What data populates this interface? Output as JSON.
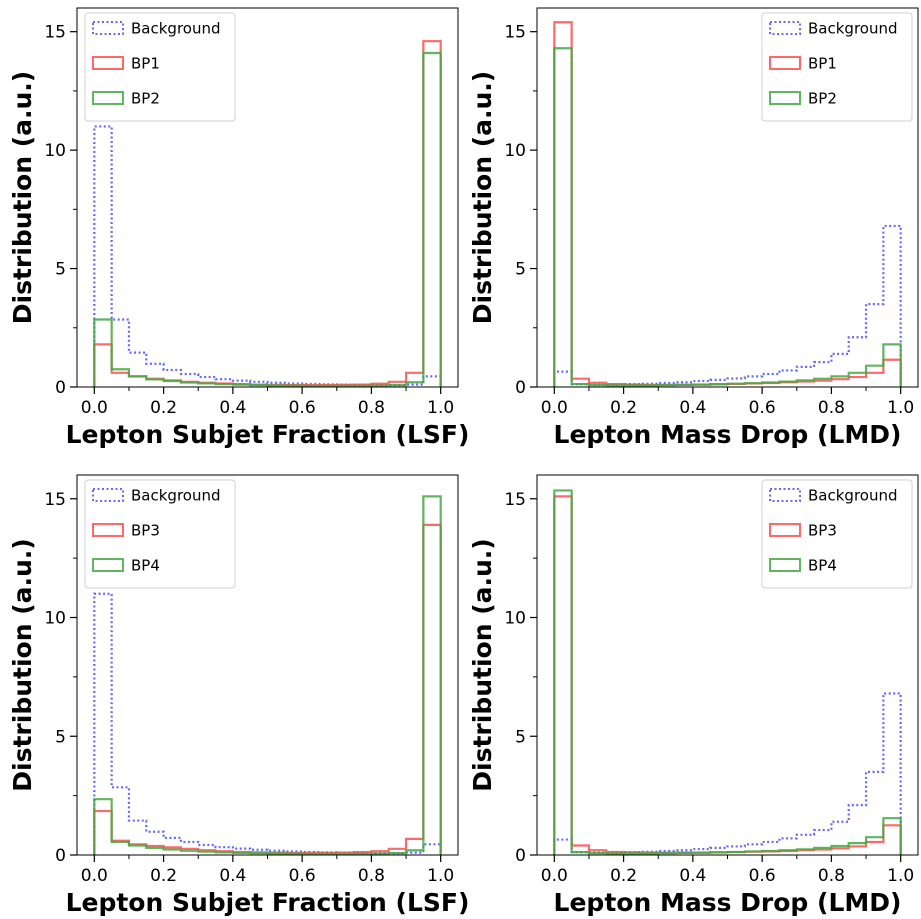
{
  "figure": {
    "colors": {
      "background": "#4c4cff",
      "bp_red": "#ff4d4d",
      "bp_green": "#44a844"
    }
  },
  "chart_data": [
    {
      "type": "step-histogram",
      "xlabel": "Lepton Subjet Fraction (LSF)",
      "ylabel": "Distribution (a.u.)",
      "xlim": [
        -0.05,
        1.05
      ],
      "ylim": [
        0,
        16
      ],
      "xticks": [
        "0.0",
        "0.2",
        "0.4",
        "0.6",
        "0.8",
        "1.0"
      ],
      "yticks": [
        "0",
        "5",
        "10",
        "15"
      ],
      "legend_position": "top-left",
      "bin_edges": [
        0,
        0.05,
        0.1,
        0.15,
        0.2,
        0.25,
        0.3,
        0.35,
        0.4,
        0.45,
        0.5,
        0.55,
        0.6,
        0.65,
        0.7,
        0.75,
        0.8,
        0.85,
        0.9,
        0.95,
        1.0
      ],
      "series": [
        {
          "name": "Background",
          "style": "dotted",
          "color": "#4c4cff",
          "values": [
            11.0,
            2.85,
            1.45,
            0.98,
            0.72,
            0.55,
            0.42,
            0.33,
            0.27,
            0.22,
            0.18,
            0.15,
            0.13,
            0.11,
            0.1,
            0.09,
            0.08,
            0.08,
            0.1,
            0.45
          ]
        },
        {
          "name": "BP1",
          "style": "solid",
          "color": "#ff4d4d",
          "values": [
            1.8,
            0.6,
            0.45,
            0.35,
            0.28,
            0.22,
            0.18,
            0.15,
            0.12,
            0.1,
            0.09,
            0.08,
            0.08,
            0.08,
            0.09,
            0.1,
            0.14,
            0.22,
            0.6,
            14.6
          ]
        },
        {
          "name": "BP2",
          "style": "solid",
          "color": "#44a844",
          "values": [
            2.85,
            0.75,
            0.45,
            0.32,
            0.25,
            0.19,
            0.15,
            0.12,
            0.1,
            0.08,
            0.07,
            0.06,
            0.05,
            0.05,
            0.05,
            0.05,
            0.06,
            0.08,
            0.2,
            14.1
          ]
        }
      ]
    },
    {
      "type": "step-histogram",
      "xlabel": "Lepton Mass Drop (LMD)",
      "ylabel": "Distribution (a.u.)",
      "xlim": [
        -0.05,
        1.05
      ],
      "ylim": [
        0,
        16
      ],
      "xticks": [
        "0.0",
        "0.2",
        "0.4",
        "0.6",
        "0.8",
        "1.0"
      ],
      "yticks": [
        "0",
        "5",
        "10",
        "15"
      ],
      "legend_position": "top-right",
      "bin_edges": [
        0,
        0.05,
        0.1,
        0.15,
        0.2,
        0.25,
        0.3,
        0.35,
        0.4,
        0.45,
        0.5,
        0.55,
        0.6,
        0.65,
        0.7,
        0.75,
        0.8,
        0.85,
        0.9,
        0.95,
        1.0
      ],
      "series": [
        {
          "name": "Background",
          "style": "dotted",
          "color": "#4c4cff",
          "values": [
            0.65,
            0.12,
            0.1,
            0.1,
            0.12,
            0.14,
            0.17,
            0.2,
            0.25,
            0.3,
            0.36,
            0.45,
            0.55,
            0.7,
            0.85,
            1.05,
            1.4,
            2.1,
            3.5,
            6.8
          ]
        },
        {
          "name": "BP1",
          "style": "solid",
          "color": "#ff4d4d",
          "values": [
            15.4,
            0.35,
            0.18,
            0.12,
            0.1,
            0.09,
            0.09,
            0.09,
            0.1,
            0.11,
            0.13,
            0.15,
            0.17,
            0.2,
            0.23,
            0.27,
            0.33,
            0.42,
            0.6,
            1.15
          ]
        },
        {
          "name": "BP2",
          "style": "solid",
          "color": "#44a844",
          "values": [
            14.3,
            0.12,
            0.08,
            0.07,
            0.07,
            0.07,
            0.08,
            0.09,
            0.1,
            0.12,
            0.14,
            0.16,
            0.19,
            0.23,
            0.28,
            0.35,
            0.45,
            0.6,
            0.9,
            1.8
          ]
        }
      ]
    },
    {
      "type": "step-histogram",
      "xlabel": "Lepton Subjet Fraction (LSF)",
      "ylabel": "Distribution (a.u.)",
      "xlim": [
        -0.05,
        1.05
      ],
      "ylim": [
        0,
        16
      ],
      "xticks": [
        "0.0",
        "0.2",
        "0.4",
        "0.6",
        "0.8",
        "1.0"
      ],
      "yticks": [
        "0",
        "5",
        "10",
        "15"
      ],
      "legend_position": "top-left",
      "bin_edges": [
        0,
        0.05,
        0.1,
        0.15,
        0.2,
        0.25,
        0.3,
        0.35,
        0.4,
        0.45,
        0.5,
        0.55,
        0.6,
        0.65,
        0.7,
        0.75,
        0.8,
        0.85,
        0.9,
        0.95,
        1.0
      ],
      "series": [
        {
          "name": "Background",
          "style": "dotted",
          "color": "#4c4cff",
          "values": [
            11.0,
            2.85,
            1.45,
            0.98,
            0.72,
            0.55,
            0.42,
            0.33,
            0.27,
            0.22,
            0.18,
            0.15,
            0.13,
            0.11,
            0.1,
            0.09,
            0.08,
            0.08,
            0.1,
            0.45
          ]
        },
        {
          "name": "BP3",
          "style": "solid",
          "color": "#ff4d4d",
          "values": [
            1.85,
            0.6,
            0.45,
            0.38,
            0.32,
            0.26,
            0.2,
            0.16,
            0.13,
            0.11,
            0.1,
            0.09,
            0.09,
            0.09,
            0.1,
            0.12,
            0.16,
            0.26,
            0.68,
            13.9
          ]
        },
        {
          "name": "BP4",
          "style": "solid",
          "color": "#44a844",
          "values": [
            2.35,
            0.55,
            0.4,
            0.3,
            0.23,
            0.18,
            0.14,
            0.11,
            0.09,
            0.08,
            0.07,
            0.06,
            0.05,
            0.05,
            0.05,
            0.05,
            0.06,
            0.08,
            0.2,
            15.1
          ]
        }
      ]
    },
    {
      "type": "step-histogram",
      "xlabel": "Lepton Mass Drop (LMD)",
      "ylabel": "Distribution (a.u.)",
      "xlim": [
        -0.05,
        1.05
      ],
      "ylim": [
        0,
        16
      ],
      "xticks": [
        "0.0",
        "0.2",
        "0.4",
        "0.6",
        "0.8",
        "1.0"
      ],
      "yticks": [
        "0",
        "5",
        "10",
        "15"
      ],
      "legend_position": "top-right",
      "bin_edges": [
        0,
        0.05,
        0.1,
        0.15,
        0.2,
        0.25,
        0.3,
        0.35,
        0.4,
        0.45,
        0.5,
        0.55,
        0.6,
        0.65,
        0.7,
        0.75,
        0.8,
        0.85,
        0.9,
        0.95,
        1.0
      ],
      "series": [
        {
          "name": "Background",
          "style": "dotted",
          "color": "#4c4cff",
          "values": [
            0.65,
            0.12,
            0.1,
            0.1,
            0.12,
            0.14,
            0.17,
            0.2,
            0.25,
            0.3,
            0.36,
            0.45,
            0.55,
            0.7,
            0.85,
            1.05,
            1.4,
            2.1,
            3.5,
            6.8
          ]
        },
        {
          "name": "BP3",
          "style": "solid",
          "color": "#ff4d4d",
          "values": [
            15.1,
            0.4,
            0.2,
            0.13,
            0.11,
            0.1,
            0.1,
            0.1,
            0.1,
            0.11,
            0.12,
            0.14,
            0.15,
            0.17,
            0.2,
            0.23,
            0.28,
            0.36,
            0.55,
            1.25
          ]
        },
        {
          "name": "BP4",
          "style": "solid",
          "color": "#44a844",
          "values": [
            15.35,
            0.12,
            0.08,
            0.07,
            0.07,
            0.07,
            0.08,
            0.09,
            0.1,
            0.11,
            0.13,
            0.15,
            0.17,
            0.2,
            0.24,
            0.3,
            0.38,
            0.5,
            0.75,
            1.55
          ]
        }
      ]
    }
  ]
}
